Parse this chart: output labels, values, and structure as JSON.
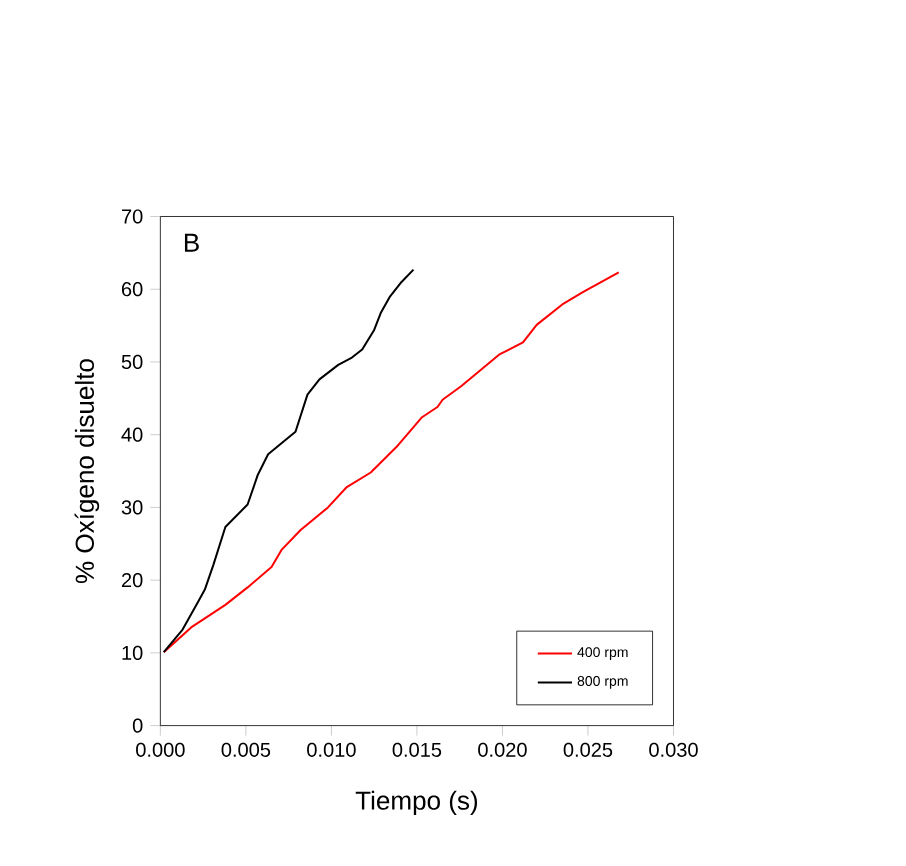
{
  "chart_data": {
    "type": "line",
    "xlabel": "Tiempo (s)",
    "ylabel": "% Oxígeno disuelto",
    "annotations": [
      "B"
    ],
    "xlim": [
      0,
      0.03
    ],
    "ylim": [
      0,
      70
    ],
    "xticks": [
      {
        "value": 0,
        "label": "0.000"
      },
      {
        "value": 0.005,
        "label": "0.005"
      },
      {
        "value": 0.01,
        "label": "0.010"
      },
      {
        "value": 0.015,
        "label": "0.015"
      },
      {
        "value": 0.02,
        "label": "0.020"
      },
      {
        "value": 0.025,
        "label": "0.025"
      },
      {
        "value": 0.03,
        "label": "0.030"
      }
    ],
    "yticks": [
      0,
      10,
      20,
      30,
      40,
      50,
      60,
      70
    ],
    "legend": "bottom right",
    "grid": false,
    "marker": "none",
    "line_style": "solid",
    "series": [
      {
        "name": "400 rpm",
        "color": "#ff0000",
        "x": [
          0.0002,
          0.0018,
          0.0038,
          0.0051,
          0.0065,
          0.0071,
          0.0082,
          0.0098,
          0.0109,
          0.0123,
          0.0138,
          0.0153,
          0.0162,
          0.0165,
          0.0176,
          0.0198,
          0.0212,
          0.022,
          0.0235,
          0.0247,
          0.0268
        ],
        "values": [
          10.1,
          13.5,
          16.6,
          19.0,
          21.8,
          24.2,
          26.9,
          30.0,
          32.8,
          34.8,
          38.3,
          42.4,
          43.8,
          44.8,
          46.7,
          51.0,
          52.7,
          55.1,
          57.9,
          59.6,
          62.3
        ]
      },
      {
        "name": "800 rpm",
        "color": "#000000",
        "x": [
          0.0002,
          0.0013,
          0.0022,
          0.0026,
          0.0031,
          0.0038,
          0.0051,
          0.0057,
          0.0063,
          0.0079,
          0.0086,
          0.0093,
          0.0104,
          0.0112,
          0.0118,
          0.0125,
          0.0129,
          0.0134,
          0.0141,
          0.0148
        ],
        "values": [
          10.1,
          13.2,
          17.0,
          18.7,
          22.1,
          27.3,
          30.4,
          34.5,
          37.3,
          40.4,
          45.5,
          47.6,
          49.6,
          50.6,
          51.7,
          54.4,
          56.8,
          58.9,
          61.0,
          62.7
        ]
      }
    ]
  }
}
